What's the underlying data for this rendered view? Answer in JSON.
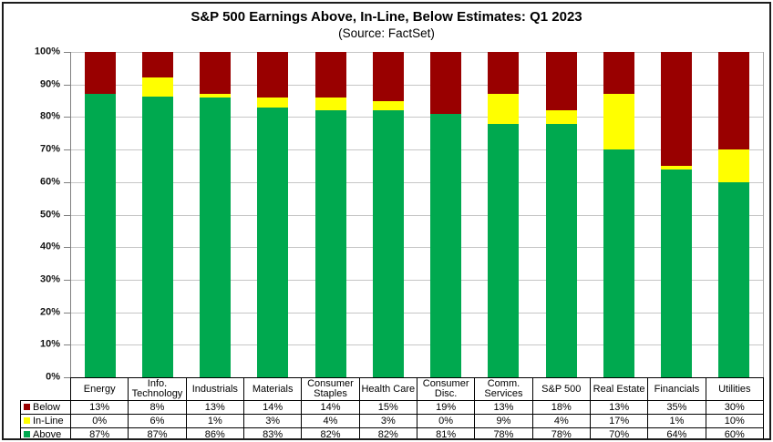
{
  "colors": {
    "below": "#990000",
    "inline": "#FFFF00",
    "above": "#00A94F",
    "gridline": "#C6C6C6",
    "axis": "#808080",
    "text": "#000000"
  },
  "chart_data": {
    "type": "bar",
    "stacked": true,
    "title": "S&P 500 Earnings Above, In-Line, Below Estimates: Q1 2023",
    "subtitle": "(Source: FactSet)",
    "categories": [
      "Energy",
      "Info. Technology",
      "Industrials",
      "Materials",
      "Consumer Staples",
      "Health Care",
      "Consumer Disc.",
      "Comm. Services",
      "S&P 500",
      "Real Estate",
      "Financials",
      "Utilities"
    ],
    "series": [
      {
        "name": "Below",
        "color_key": "below",
        "values": [
          13,
          8,
          13,
          14,
          14,
          15,
          19,
          13,
          18,
          13,
          35,
          30
        ]
      },
      {
        "name": "In-Line",
        "color_key": "inline",
        "values": [
          0,
          6,
          1,
          3,
          4,
          3,
          0,
          9,
          4,
          17,
          1,
          10
        ]
      },
      {
        "name": "Above",
        "color_key": "above",
        "values": [
          87,
          87,
          86,
          83,
          82,
          82,
          81,
          78,
          78,
          70,
          64,
          60
        ]
      }
    ],
    "value_suffix": "%",
    "xlabel": "",
    "ylabel": "",
    "ylim": [
      0,
      100
    ],
    "y_tick_step": 10,
    "y_tick_labels": [
      "100%",
      "90%",
      "80%",
      "70%",
      "60%",
      "50%",
      "40%",
      "30%",
      "20%",
      "10%",
      "0%"
    ],
    "grid": true,
    "legend_position": "table-left"
  }
}
